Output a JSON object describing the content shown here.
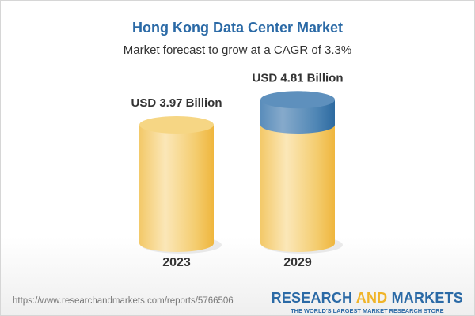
{
  "chart_data": {
    "type": "bar",
    "title": "Hong Kong Data Center Market",
    "subtitle": "Market forecast to grow at a CAGR of 3.3%",
    "categories": [
      "2023",
      "2029"
    ],
    "values": [
      3.97,
      4.81
    ],
    "data_labels": [
      "USD 3.97 Billion",
      "USD 4.81 Billion"
    ],
    "unit": "USD Billion",
    "colors": {
      "base": "#f2c45a",
      "growth": "#4f86b5",
      "title": "#2b6aa6"
    }
  },
  "footer": {
    "url": "https://www.researchandmarkets.com/reports/5766506",
    "logo_part1": "RESEARCH ",
    "logo_and": "AND",
    "logo_part2": " MARKETS",
    "tagline": "THE WORLD'S LARGEST MARKET RESEARCH STORE"
  }
}
